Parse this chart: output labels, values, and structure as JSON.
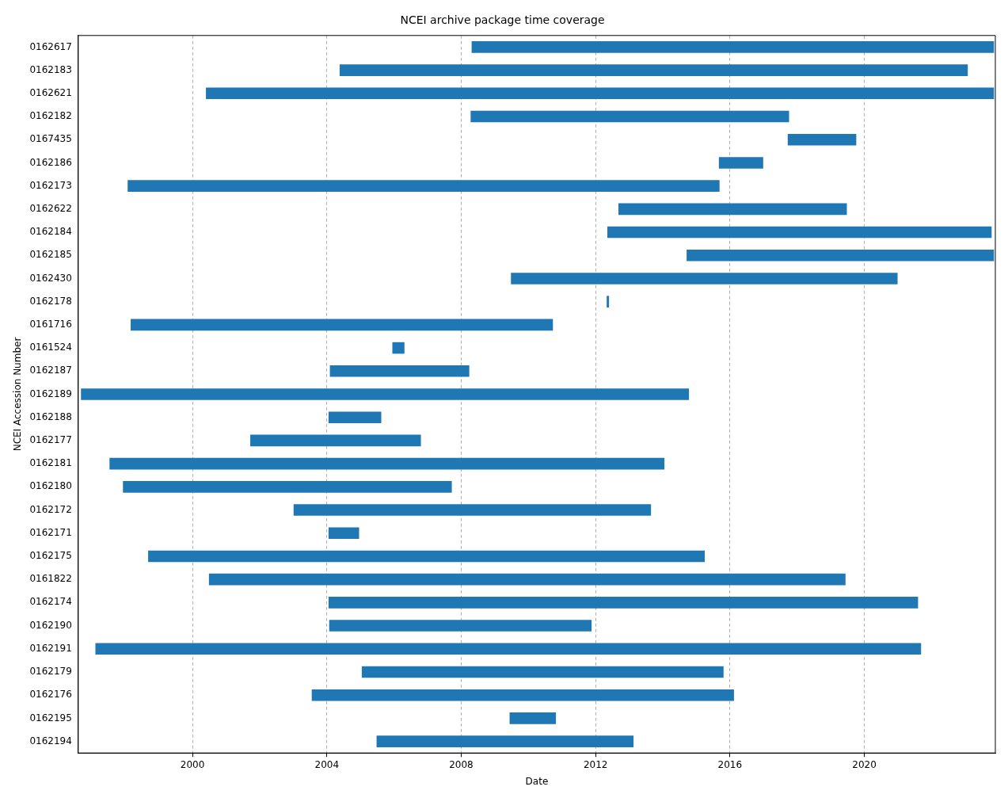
{
  "chart_data": {
    "type": "bar",
    "orientation": "horizontal",
    "title": "NCEI archive package time coverage",
    "xlabel": "Date",
    "ylabel": "NCEI Accession Number",
    "categories": [
      "0162617",
      "0162183",
      "0162621",
      "0162182",
      "0167435",
      "0162186",
      "0162173",
      "0162622",
      "0162184",
      "0162185",
      "0162430",
      "0162178",
      "0161716",
      "0161524",
      "0162187",
      "0162189",
      "0162188",
      "0162177",
      "0162181",
      "0162180",
      "0162172",
      "0162171",
      "0162175",
      "0161822",
      "0162174",
      "0162190",
      "0162191",
      "0162179",
      "0162176",
      "0162195",
      "0162194"
    ],
    "base": [
      2008.31,
      2004.38,
      2000.4,
      2008.28,
      2017.72,
      2015.67,
      1998.07,
      2012.68,
      2012.35,
      2014.71,
      2009.48,
      2012.33,
      1998.16,
      2005.95,
      2004.09,
      1996.68,
      2004.05,
      2001.72,
      1997.53,
      1997.93,
      2003.01,
      2004.05,
      1998.68,
      2000.49,
      2004.05,
      2004.07,
      1997.11,
      2005.04,
      2003.55,
      2009.44,
      2005.48
    ],
    "values": [
      15.55,
      18.7,
      23.46,
      9.48,
      2.04,
      1.32,
      17.62,
      6.8,
      11.44,
      9.15,
      11.51,
      0.07,
      12.57,
      0.36,
      4.15,
      18.1,
      1.57,
      5.08,
      16.52,
      9.79,
      10.64,
      0.91,
      16.57,
      18.95,
      17.55,
      7.81,
      24.58,
      10.77,
      12.57,
      1.38,
      7.65
    ],
    "color": "#1f77b4",
    "xlim": [
      1996.6,
      2023.9
    ],
    "xticks": [
      2000,
      2004,
      2008,
      2012,
      2016,
      2020
    ],
    "grid": "x",
    "legend": false
  }
}
